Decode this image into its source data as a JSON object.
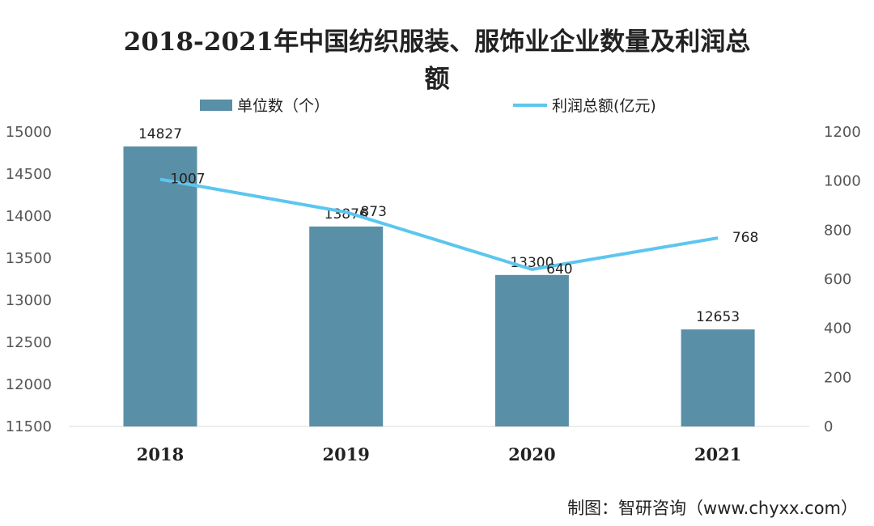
{
  "chart_data": {
    "type": "bar+line",
    "title": "2018-2021年中国纺织服装、服饰业企业数量及利润总额",
    "title_line1": "2018-2021年中国纺织服装、服饰业企业数量及利润总",
    "title_line2": "额",
    "categories": [
      "2018",
      "2019",
      "2020",
      "2021"
    ],
    "series": [
      {
        "name": "单位数（个）",
        "type": "bar",
        "axis": "left",
        "values": [
          14827,
          13876,
          13300,
          12653
        ],
        "color": "#5a8fa8"
      },
      {
        "name": "利润总额(亿元)",
        "type": "line",
        "axis": "right",
        "values": [
          1007,
          873,
          640,
          768
        ],
        "color": "#5cc6ee"
      }
    ],
    "left_axis": {
      "ylim": [
        11500,
        15000
      ],
      "ticks": [
        "15000",
        "14500",
        "14000",
        "13500",
        "13000",
        "12500",
        "12000",
        "11500"
      ]
    },
    "right_axis": {
      "ylim": [
        0,
        1200
      ],
      "ticks": [
        "1200",
        "1000",
        "800",
        "600",
        "400",
        "200",
        "0"
      ]
    },
    "grid": false,
    "legend_placement": "top"
  },
  "footer": "制图：智研咨询（www.chyxx.com）",
  "watermark": "智研咨询 www.chyxx.com"
}
